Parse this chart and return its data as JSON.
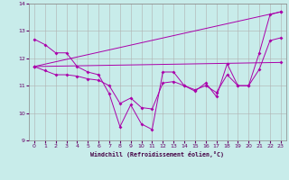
{
  "background_color": "#c8ecea",
  "grid_color": "#b0b0b0",
  "line_color": "#aa00aa",
  "xlabel": "Windchill (Refroidissement éolien,°C)",
  "xlim": [
    -0.5,
    23.5
  ],
  "ylim": [
    9,
    14
  ],
  "yticks": [
    9,
    10,
    11,
    12,
    13,
    14
  ],
  "xticks": [
    0,
    1,
    2,
    3,
    4,
    5,
    6,
    7,
    8,
    9,
    10,
    11,
    12,
    13,
    14,
    15,
    16,
    17,
    18,
    19,
    20,
    21,
    22,
    23
  ],
  "series": [
    {
      "x": [
        0,
        1,
        2,
        3,
        4,
        5,
        6,
        7,
        8,
        9,
        10,
        11,
        12,
        13,
        14,
        15,
        16,
        17,
        18,
        19,
        20,
        21,
        22,
        23
      ],
      "y": [
        12.7,
        12.5,
        12.2,
        12.2,
        11.7,
        11.5,
        11.4,
        10.7,
        9.5,
        10.3,
        9.6,
        9.4,
        11.5,
        11.5,
        11.0,
        10.8,
        11.1,
        10.6,
        11.8,
        11.0,
        11.0,
        12.2,
        13.6,
        13.7
      ]
    },
    {
      "x": [
        0,
        23
      ],
      "y": [
        11.7,
        11.85
      ]
    },
    {
      "x": [
        0,
        23
      ],
      "y": [
        11.7,
        13.7
      ]
    },
    {
      "x": [
        0,
        1,
        2,
        3,
        4,
        5,
        6,
        7,
        8,
        9,
        10,
        11,
        12,
        13,
        14,
        15,
        16,
        17,
        18,
        19,
        20,
        21,
        22,
        23
      ],
      "y": [
        11.7,
        11.55,
        11.4,
        11.4,
        11.35,
        11.25,
        11.2,
        11.0,
        10.35,
        10.55,
        10.2,
        10.15,
        11.1,
        11.15,
        11.0,
        10.85,
        11.0,
        10.75,
        11.4,
        11.0,
        11.0,
        11.6,
        12.65,
        12.75
      ]
    }
  ]
}
